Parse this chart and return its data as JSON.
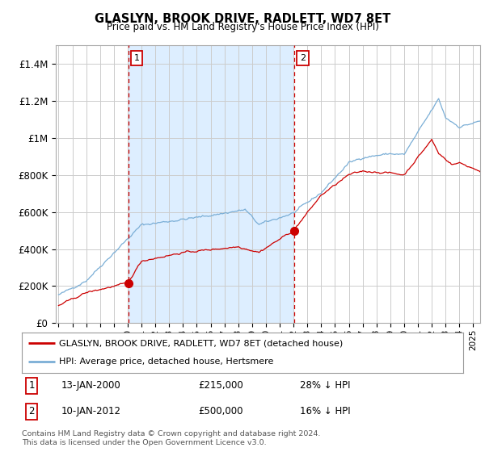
{
  "title": "GLASLYN, BROOK DRIVE, RADLETT, WD7 8ET",
  "subtitle": "Price paid vs. HM Land Registry's House Price Index (HPI)",
  "legend_line1": "GLASLYN, BROOK DRIVE, RADLETT, WD7 8ET (detached house)",
  "legend_line2": "HPI: Average price, detached house, Hertsmere",
  "sale1_label": "1",
  "sale1_date": "13-JAN-2000",
  "sale1_price": "£215,000",
  "sale1_hpi": "28% ↓ HPI",
  "sale2_label": "2",
  "sale2_date": "10-JAN-2012",
  "sale2_price": "£500,000",
  "sale2_hpi": "16% ↓ HPI",
  "footer": "Contains HM Land Registry data © Crown copyright and database right 2024.\nThis data is licensed under the Open Government Licence v3.0.",
  "red_color": "#cc0000",
  "blue_color": "#7aaed6",
  "shade_color": "#ddeeff",
  "grid_color": "#cccccc",
  "bg_color": "#ffffff",
  "plot_bg_color": "#ffffff",
  "ylim": [
    0,
    1500000
  ],
  "yticks": [
    0,
    200000,
    400000,
    600000,
    800000,
    1000000,
    1200000,
    1400000
  ],
  "ytick_labels": [
    "£0",
    "£200K",
    "£400K",
    "£600K",
    "£800K",
    "£1M",
    "£1.2M",
    "£1.4M"
  ],
  "vline1_year": 2000.04,
  "vline2_year": 2012.04,
  "sale1_x_year": 2000.04,
  "sale1_y": 215000,
  "sale2_x_year": 2012.04,
  "sale2_y": 500000,
  "xmin": 1995.0,
  "xmax": 2025.5
}
